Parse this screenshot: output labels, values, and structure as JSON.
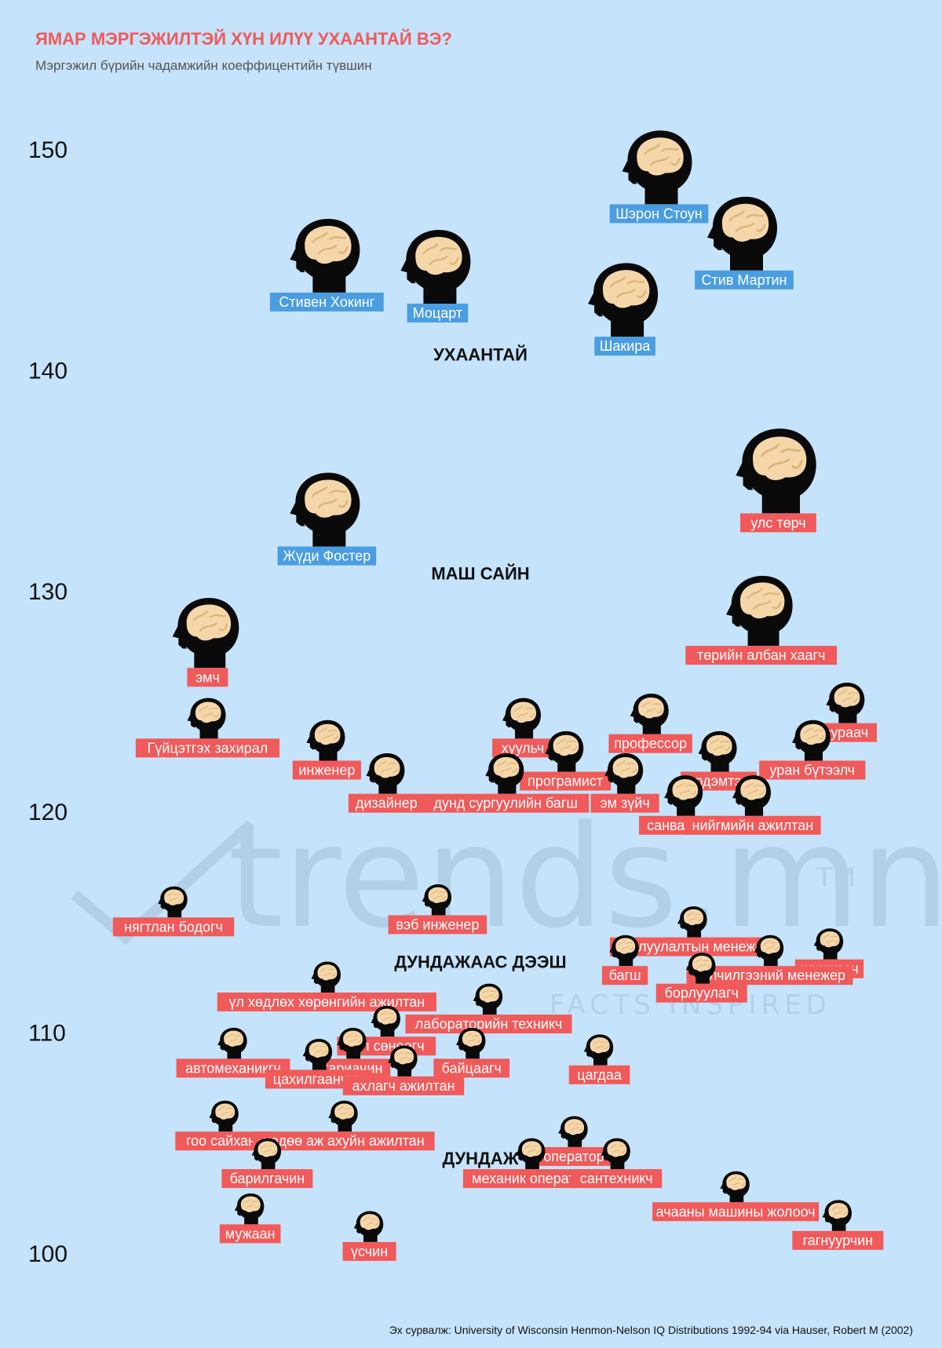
{
  "title": "ЯМАР МЭРГЭЖИЛТЭЙ ХҮН ИЛҮҮ УХААНТАЙ ВЭ?",
  "subtitle": "Мэргэжил бүрийн чадамжийн коеффицентийн түвшин",
  "source": "Эх сурвалж: University of Wisconsin Henmon-Nelson IQ Distributions 1992-94 via Hauser, Robert M (2002)",
  "watermark": {
    "brand": "trends.mn",
    "tm": "TM",
    "tagline": "FACTS INSPIRED"
  },
  "colors": {
    "background": "#c5e3fa",
    "title": "#f05a5a",
    "celebrity_label": "#4a9de0",
    "profession_label": "#f05a5a",
    "head": "#0a0a0a",
    "brain": "#f5d6a8"
  },
  "chart_data": {
    "type": "scatter",
    "title": "ЯМАР МЭРГЭЖИЛТЭЙ ХҮН ИЛҮҮ УХААНТАЙ ВЭ?",
    "subtitle": "Мэргэжил бүрийн чадамжийн коеффицентийн түвшин",
    "ylim": [
      100,
      150
    ],
    "yticks": [
      100,
      110,
      120,
      130,
      140,
      150
    ],
    "grid": false,
    "bands": [
      {
        "label": "УХААНТАЙ",
        "y": 140.7
      },
      {
        "label": "МАШ САЙН",
        "y": 130.8
      },
      {
        "label": "ДУНДАЖААС ДЭЭШ",
        "y": 113.2
      },
      {
        "label": "ДУНДАЖ",
        "y": 104.3
      }
    ],
    "series": [
      {
        "name": "",
        "points": [
          {
            "label": "Шэрон Стоун",
            "y": 147.5,
            "x": 0.7
          },
          {
            "label": "Стив Мартин",
            "y": 144.5,
            "x": 0.8
          },
          {
            "label": "Стивен Хокинг",
            "y": 143.5,
            "x": 0.31
          },
          {
            "label": "Моцарт",
            "y": 143.0,
            "x": 0.44
          },
          {
            "label": "Шакира",
            "y": 141.5,
            "x": 0.66
          },
          {
            "label": "Жүди Фостер",
            "y": 132.0,
            "x": 0.31
          }
        ]
      },
      {
        "name": "",
        "points": [
          {
            "label": "улс төрч",
            "y": 133.5,
            "x": 0.84
          },
          {
            "label": "төрийн албан хаагч",
            "y": 127.5,
            "x": 0.82
          },
          {
            "label": "эмч",
            "y": 126.5,
            "x": 0.17
          },
          {
            "label": "зураач",
            "y": 124.0,
            "x": 0.92
          },
          {
            "label": "Гүйцэтгэх захирал",
            "y": 123.3,
            "x": 0.17
          },
          {
            "label": "профессор",
            "y": 123.5,
            "x": 0.69
          },
          {
            "label": "хуульч",
            "y": 123.3,
            "x": 0.54
          },
          {
            "label": "инженер",
            "y": 122.3,
            "x": 0.31
          },
          {
            "label": "уран бүтээлч",
            "y": 122.3,
            "x": 0.88
          },
          {
            "label": "эрдэмтэн",
            "y": 121.8,
            "x": 0.77
          },
          {
            "label": "програмист",
            "y": 121.8,
            "x": 0.59
          },
          {
            "label": "дизайнер",
            "y": 120.8,
            "x": 0.38
          },
          {
            "label": "дунд сургуулийн багш",
            "y": 120.8,
            "x": 0.52
          },
          {
            "label": "эм зүйч",
            "y": 120.8,
            "x": 0.66
          },
          {
            "label": "санваартан",
            "y": 119.8,
            "x": 0.73
          },
          {
            "label": "нийгмийн ажилтан",
            "y": 119.8,
            "x": 0.81
          }
        ]
      },
      {
        "name": "",
        "points": [
          {
            "label": "нягтлан бодогч",
            "y": 115.2,
            "x": 0.13
          },
          {
            "label": "вэб инженер",
            "y": 115.3,
            "x": 0.44
          },
          {
            "label": "борлуулалтын менежер",
            "y": 114.3,
            "x": 0.74
          },
          {
            "label": "шинжээч",
            "y": 113.3,
            "x": 0.9
          },
          {
            "label": "багш",
            "y": 113.0,
            "x": 0.66
          },
          {
            "label": "үйлчилгээний менежер",
            "y": 113.0,
            "x": 0.83
          },
          {
            "label": "борлуулагч",
            "y": 112.2,
            "x": 0.75
          },
          {
            "label": "үл хөдлөх хөрөнгийн ажилтан",
            "y": 111.8,
            "x": 0.31
          },
          {
            "label": "лабораторийн техникч",
            "y": 110.8,
            "x": 0.5
          },
          {
            "label": "гал сөнөөгч",
            "y": 109.8,
            "x": 0.38
          },
          {
            "label": "автомеханикгч",
            "y": 108.8,
            "x": 0.2
          },
          {
            "label": "байцаагч",
            "y": 108.8,
            "x": 0.48
          },
          {
            "label": "тариачин",
            "y": 108.8,
            "x": 0.34
          },
          {
            "label": "цахилгаанчин",
            "y": 108.3,
            "x": 0.3
          },
          {
            "label": "ахлагч ажилтан",
            "y": 108.0,
            "x": 0.4
          },
          {
            "label": "цагдаа",
            "y": 108.5,
            "x": 0.63
          },
          {
            "label": "гоо сайханч",
            "y": 105.5,
            "x": 0.19
          },
          {
            "label": "хөдөө аж ахуйн ажилтан",
            "y": 105.5,
            "x": 0.33
          },
          {
            "label": "оператор",
            "y": 104.8,
            "x": 0.6
          },
          {
            "label": "механик оператор",
            "y": 103.8,
            "x": 0.55
          },
          {
            "label": "сантехникч",
            "y": 103.8,
            "x": 0.65
          },
          {
            "label": "барилгачин",
            "y": 103.8,
            "x": 0.24
          },
          {
            "label": "ачааны машины жолооч",
            "y": 102.3,
            "x": 0.79
          },
          {
            "label": "мужаан",
            "y": 101.3,
            "x": 0.22
          },
          {
            "label": "гагнуурчин",
            "y": 101.0,
            "x": 0.91
          },
          {
            "label": "үсчин",
            "y": 100.5,
            "x": 0.36
          }
        ]
      }
    ]
  }
}
